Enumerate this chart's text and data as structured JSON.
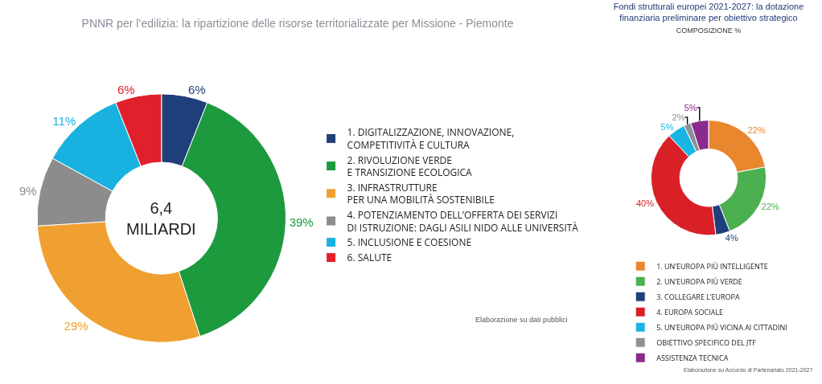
{
  "chart_data": [
    {
      "type": "donut",
      "title": "PNNR per l’edilizia: la ripartizione delle risorse territorializzate per Missione - Piemonte",
      "categories": [
        "1. DIGITALIZZAZIONE, INNOVAZIONE,\nCOMPETITIVITÀ E CULTURA",
        "2. RIVOLUZIONE VERDE\nE TRANSIZIONE ECOLOGICA",
        "3. INFRASTRUTTURE\nPER UNA MOBILITÀ SOSTENIBILE",
        "4. POTENZIAMENTO DELL’OFFERTA DEI SERVIZI\nDI ISTRUZIONE: DAGLI ASILI NIDO ALLE UNIVERSITÀ",
        "5. INCLUSIONE E COESIONE",
        "6. SALUTE"
      ],
      "values": [
        6,
        39,
        29,
        9,
        11,
        6
      ],
      "value_labels": [
        "6%",
        "39%",
        "29%",
        "9%",
        "11%",
        "6%"
      ],
      "colors": [
        "#1f3f7a",
        "#1e9a3e",
        "#f0a030",
        "#8c8c8c",
        "#19b2e0",
        "#e0202a"
      ],
      "legend": "right",
      "annotations": [
        "6,4\nMILIARDI",
        "Elaborazione su dati pubblici"
      ]
    },
    {
      "type": "donut",
      "title": "Fondi strutturali europei 2021-2027: la dotazione\nfinanziaria preliminare per obiettivo strategico",
      "subtitle": "COMPOSIZIONE %",
      "categories": [
        "1. UN’EUROPA PIÙ INTELLIGENTE",
        "2. UN’EUROPA PIÙ VERDE",
        "3. COLLEGARE L’EUROPA",
        "4. EUROPA SOCIALE",
        "5. UN’EUROPA PIÙ VICINA AI CITTADINI",
        "OBIETTIVO SPECIFICO DEL JTF",
        "ASSISTENZA TECNICA"
      ],
      "values": [
        22,
        22,
        4,
        40,
        5,
        2,
        5
      ],
      "value_labels": [
        "22%",
        "22%",
        "4%",
        "40%",
        "5%",
        "2%",
        "5%"
      ],
      "colors": [
        "#e8872e",
        "#4caf50",
        "#1f3f7a",
        "#d92027",
        "#1ab5e3",
        "#8c9196",
        "#8a2a8c"
      ],
      "legend": "bottom",
      "annotations": [
        "Elaborazione su Accordo di Partenariato 2021-2027"
      ]
    }
  ]
}
